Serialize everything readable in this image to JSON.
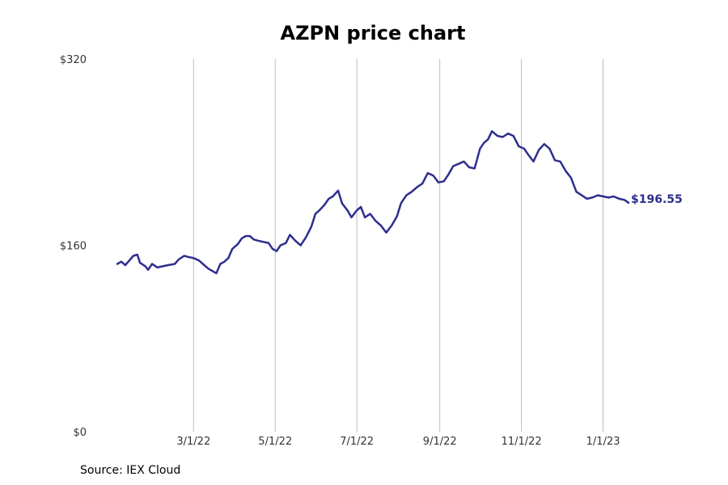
{
  "chart_data": {
    "type": "line",
    "title": "AZPN price chart",
    "source": "Source: IEX Cloud",
    "ylim": [
      0,
      320
    ],
    "y_ticks": [
      {
        "value": 0,
        "label": "$0"
      },
      {
        "value": 160,
        "label": "$160"
      },
      {
        "value": 320,
        "label": "$320"
      }
    ],
    "x_range": [
      "2022-01-03",
      "2023-01-20"
    ],
    "x_ticks": [
      {
        "date": "2022-03-01",
        "label": "3/1/22"
      },
      {
        "date": "2022-05-01",
        "label": "5/1/22"
      },
      {
        "date": "2022-07-01",
        "label": "7/1/22"
      },
      {
        "date": "2022-09-01",
        "label": "9/1/22"
      },
      {
        "date": "2022-11-01",
        "label": "11/1/22"
      },
      {
        "date": "2023-01-01",
        "label": "1/1/23"
      }
    ],
    "grid": {
      "vertical": true,
      "horizontal": false
    },
    "line_color": "#2e2e8f",
    "grid_color": "#bbbbbb",
    "last_value_label": "$196.55",
    "series": [
      {
        "values": [
          [
            "2022-01-03",
            144
          ],
          [
            "2022-01-06",
            146
          ],
          [
            "2022-01-09",
            143
          ],
          [
            "2022-01-12",
            147
          ],
          [
            "2022-01-15",
            151
          ],
          [
            "2022-01-18",
            152
          ],
          [
            "2022-01-20",
            145
          ],
          [
            "2022-01-24",
            142
          ],
          [
            "2022-01-26",
            139
          ],
          [
            "2022-01-29",
            144
          ],
          [
            "2022-02-02",
            141
          ],
          [
            "2022-02-06",
            142
          ],
          [
            "2022-02-10",
            143
          ],
          [
            "2022-02-15",
            144
          ],
          [
            "2022-02-18",
            148
          ],
          [
            "2022-02-22",
            151
          ],
          [
            "2022-02-25",
            150
          ],
          [
            "2022-03-01",
            149
          ],
          [
            "2022-03-05",
            147
          ],
          [
            "2022-03-09",
            143
          ],
          [
            "2022-03-12",
            140
          ],
          [
            "2022-03-15",
            138
          ],
          [
            "2022-03-18",
            136
          ],
          [
            "2022-03-21",
            144
          ],
          [
            "2022-03-24",
            146
          ],
          [
            "2022-03-27",
            149
          ],
          [
            "2022-03-30",
            157
          ],
          [
            "2022-04-03",
            161
          ],
          [
            "2022-04-06",
            166
          ],
          [
            "2022-04-09",
            168
          ],
          [
            "2022-04-12",
            168
          ],
          [
            "2022-04-15",
            165
          ],
          [
            "2022-04-18",
            164
          ],
          [
            "2022-04-22",
            163
          ],
          [
            "2022-04-26",
            162
          ],
          [
            "2022-04-29",
            157
          ],
          [
            "2022-05-02",
            155
          ],
          [
            "2022-05-05",
            160
          ],
          [
            "2022-05-09",
            162
          ],
          [
            "2022-05-12",
            169
          ],
          [
            "2022-05-16",
            164
          ],
          [
            "2022-05-20",
            160
          ],
          [
            "2022-05-24",
            167
          ],
          [
            "2022-05-28",
            176
          ],
          [
            "2022-05-31",
            187
          ],
          [
            "2022-06-03",
            190
          ],
          [
            "2022-06-07",
            195
          ],
          [
            "2022-06-10",
            200
          ],
          [
            "2022-06-13",
            202
          ],
          [
            "2022-06-17",
            207
          ],
          [
            "2022-06-20",
            196
          ],
          [
            "2022-06-24",
            190
          ],
          [
            "2022-06-27",
            184
          ],
          [
            "2022-07-01",
            190
          ],
          [
            "2022-07-04",
            193
          ],
          [
            "2022-07-07",
            184
          ],
          [
            "2022-07-11",
            187
          ],
          [
            "2022-07-15",
            181
          ],
          [
            "2022-07-19",
            177
          ],
          [
            "2022-07-23",
            171
          ],
          [
            "2022-07-27",
            177
          ],
          [
            "2022-07-31",
            185
          ],
          [
            "2022-08-03",
            196
          ],
          [
            "2022-08-07",
            203
          ],
          [
            "2022-08-11",
            206
          ],
          [
            "2022-08-15",
            210
          ],
          [
            "2022-08-19",
            213
          ],
          [
            "2022-08-23",
            222
          ],
          [
            "2022-08-27",
            220
          ],
          [
            "2022-08-31",
            214
          ],
          [
            "2022-09-04",
            215
          ],
          [
            "2022-09-07",
            220
          ],
          [
            "2022-09-11",
            228
          ],
          [
            "2022-09-15",
            230
          ],
          [
            "2022-09-19",
            232
          ],
          [
            "2022-09-23",
            227
          ],
          [
            "2022-09-27",
            226
          ],
          [
            "2022-10-01",
            243
          ],
          [
            "2022-10-04",
            248
          ],
          [
            "2022-10-07",
            251
          ],
          [
            "2022-10-10",
            258
          ],
          [
            "2022-10-14",
            254
          ],
          [
            "2022-10-18",
            253
          ],
          [
            "2022-10-22",
            256
          ],
          [
            "2022-10-26",
            254
          ],
          [
            "2022-10-30",
            245
          ],
          [
            "2022-11-03",
            243
          ],
          [
            "2022-11-06",
            238
          ],
          [
            "2022-11-10",
            232
          ],
          [
            "2022-11-14",
            242
          ],
          [
            "2022-11-18",
            247
          ],
          [
            "2022-11-22",
            243
          ],
          [
            "2022-11-26",
            233
          ],
          [
            "2022-11-30",
            232
          ],
          [
            "2022-12-04",
            224
          ],
          [
            "2022-12-08",
            218
          ],
          [
            "2022-12-12",
            206
          ],
          [
            "2022-12-16",
            203
          ],
          [
            "2022-12-20",
            200
          ],
          [
            "2022-12-24",
            201
          ],
          [
            "2022-12-28",
            203
          ],
          [
            "2023-01-01",
            202
          ],
          [
            "2023-01-05",
            201
          ],
          [
            "2023-01-09",
            202
          ],
          [
            "2023-01-13",
            200
          ],
          [
            "2023-01-17",
            199
          ],
          [
            "2023-01-20",
            196.55
          ]
        ]
      }
    ]
  }
}
